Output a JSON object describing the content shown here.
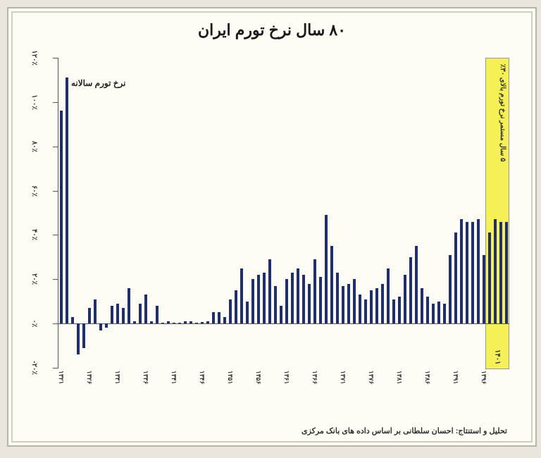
{
  "title": "۸۰ سال نرخ تورم ایران",
  "series_label": "نرخ تورم سالانه",
  "highlight_label": "۵ سال مستمر نرخ تورم بالای ۳۰٪",
  "highlight_xtick": "۱۴۰۱",
  "credit": "تحلیل و استنتاج: احسان سلطانی بر اساس داده های بانک مرکزی",
  "chart": {
    "type": "bar",
    "background_color": "#fdfcf5",
    "frame_color": "#b8b5a8",
    "bar_color": "#1f2e6e",
    "highlight_bg": "#f5f056",
    "axis_color": "#555555",
    "text_color": "#333333",
    "title_fontsize": 22,
    "label_fontsize": 10,
    "ylim": [
      -20,
      120
    ],
    "ytick_step": 20,
    "y_ticks": [
      -20,
      0,
      20,
      40,
      60,
      80,
      100,
      120
    ],
    "y_tick_labels": [
      "-۲۰٪",
      "۰٪",
      "۲۰٪",
      "۴۰٪",
      "۶۰٪",
      "۸۰٪",
      "۱۰۰٪",
      "۱۲۰٪"
    ],
    "x_tick_step": 5,
    "x_tick_labels": [
      "۱۳۲۱",
      "۱۳۲۶",
      "۱۳۳۱",
      "۱۳۳۶",
      "۱۳۴۱",
      "۱۳۴۶",
      "۱۳۵۱",
      "۱۳۵۶",
      "۱۳۶۱",
      "۱۳۶۶",
      "۱۳۷۱",
      "۱۳۷۶",
      "۱۳۸۱",
      "۱۳۸۶",
      "۱۳۹۱",
      "۱۳۹۶"
    ],
    "highlight_start_index": 76,
    "bar_width_ratio": 0.55,
    "values": [
      96,
      111,
      3,
      -14,
      -11,
      7,
      11,
      -3,
      -2,
      8,
      9,
      7,
      16,
      1,
      9,
      13,
      1,
      8,
      0.5,
      1,
      0.5,
      0.5,
      1,
      1,
      0.5,
      0.8,
      1,
      5,
      5,
      3,
      11,
      15,
      25,
      10,
      20,
      22,
      23,
      29,
      17,
      8,
      20,
      23,
      25,
      22,
      18,
      29,
      21,
      49,
      35,
      23,
      17,
      18,
      20,
      13,
      11,
      15,
      16,
      18,
      25,
      11,
      12,
      22,
      30,
      35,
      16,
      12,
      9,
      10,
      9,
      31,
      41,
      47,
      46,
      46,
      47,
      31,
      41,
      47,
      46,
      46
    ]
  }
}
